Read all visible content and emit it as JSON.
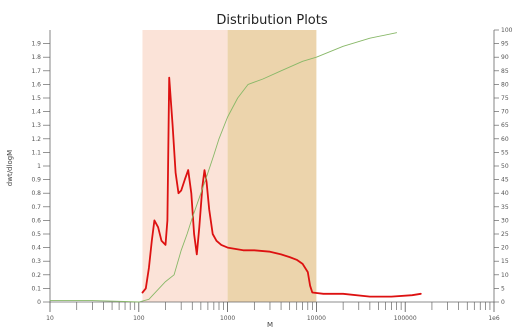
{
  "chart_data": {
    "type": "line",
    "title": "Distribution Plots",
    "xlabel": "M",
    "ylabel": "dwt/dlogM",
    "x_scale": "log",
    "xlim": [
      10,
      1000000
    ],
    "ylim": [
      0,
      2.0
    ],
    "y2lim": [
      0,
      100
    ],
    "x_tick_labels": [
      {
        "x": 10,
        "label": "10"
      },
      {
        "x": 100,
        "label": "100"
      },
      {
        "x": 1000,
        "label": "1000"
      },
      {
        "x": 10000,
        "label": "10000"
      },
      {
        "x": 100000,
        "label": "100000"
      },
      {
        "x": 1000000,
        "label": "1e6"
      }
    ],
    "y_ticks": [
      0,
      0.1,
      0.2,
      0.3,
      0.4,
      0.5,
      0.6,
      0.7,
      0.8,
      0.9,
      1,
      1.1,
      1.2,
      1.3,
      1.4,
      1.5,
      1.6,
      1.7,
      1.8,
      1.9
    ],
    "y2_ticks": [
      0,
      5,
      10,
      15,
      20,
      25,
      30,
      35,
      40,
      45,
      50,
      55,
      60,
      65,
      70,
      75,
      80,
      85,
      90,
      95,
      100
    ],
    "shaded_regions": [
      {
        "x_start": 110,
        "x_end": 1000,
        "color": "#fbe3d8"
      },
      {
        "x_start": 1000,
        "x_end": 10000,
        "color": "#ecd4ac"
      }
    ],
    "series": [
      {
        "color": "#dd1111",
        "axis": "left",
        "points": [
          [
            110,
            0.07
          ],
          [
            120,
            0.1
          ],
          [
            130,
            0.25
          ],
          [
            140,
            0.45
          ],
          [
            150,
            0.6
          ],
          [
            165,
            0.55
          ],
          [
            180,
            0.45
          ],
          [
            200,
            0.42
          ],
          [
            210,
            0.6
          ],
          [
            220,
            1.65
          ],
          [
            240,
            1.3
          ],
          [
            260,
            0.95
          ],
          [
            280,
            0.8
          ],
          [
            300,
            0.82
          ],
          [
            330,
            0.9
          ],
          [
            360,
            0.97
          ],
          [
            390,
            0.8
          ],
          [
            420,
            0.5
          ],
          [
            450,
            0.35
          ],
          [
            480,
            0.55
          ],
          [
            520,
            0.85
          ],
          [
            550,
            0.97
          ],
          [
            580,
            0.88
          ],
          [
            620,
            0.68
          ],
          [
            680,
            0.5
          ],
          [
            750,
            0.45
          ],
          [
            850,
            0.42
          ],
          [
            1000,
            0.4
          ],
          [
            1500,
            0.38
          ],
          [
            2000,
            0.38
          ],
          [
            3000,
            0.37
          ],
          [
            4000,
            0.35
          ],
          [
            5000,
            0.33
          ],
          [
            6000,
            0.31
          ],
          [
            7000,
            0.28
          ],
          [
            8000,
            0.22
          ],
          [
            8500,
            0.12
          ],
          [
            9000,
            0.07
          ],
          [
            12000,
            0.06
          ],
          [
            20000,
            0.06
          ],
          [
            40000,
            0.04
          ],
          [
            70000,
            0.04
          ],
          [
            120000,
            0.05
          ],
          [
            150000,
            0.06
          ]
        ]
      },
      {
        "color": "#88b868",
        "axis": "left",
        "points": [
          [
            10,
            0.01
          ],
          [
            30,
            0.01
          ],
          [
            60,
            0.005
          ],
          [
            100,
            0.0
          ],
          [
            130,
            0.02
          ],
          [
            200,
            0.15
          ],
          [
            250,
            0.2
          ],
          [
            300,
            0.38
          ],
          [
            350,
            0.5
          ],
          [
            400,
            0.62
          ],
          [
            500,
            0.8
          ],
          [
            600,
            0.95
          ],
          [
            700,
            1.08
          ],
          [
            800,
            1.2
          ],
          [
            1000,
            1.36
          ],
          [
            1300,
            1.5
          ],
          [
            1700,
            1.6
          ],
          [
            2500,
            1.64
          ],
          [
            4000,
            1.7
          ],
          [
            7000,
            1.77
          ],
          [
            10000,
            1.8
          ],
          [
            20000,
            1.88
          ],
          [
            40000,
            1.94
          ],
          [
            80000,
            1.98
          ]
        ]
      }
    ]
  }
}
